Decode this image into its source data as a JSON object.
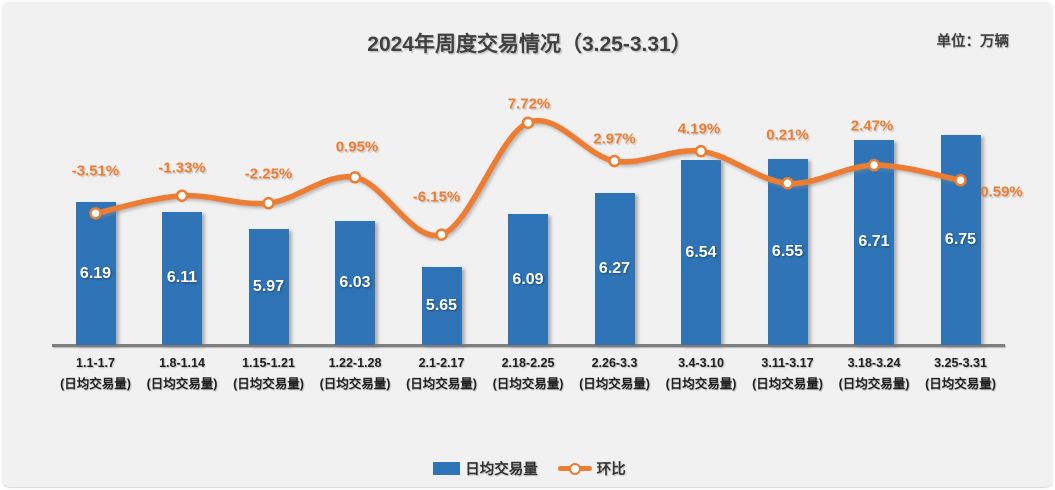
{
  "header": {
    "title": "2024年周度交易情况（3.25-3.31）",
    "unit_label": "单位：万辆"
  },
  "chart_data": {
    "type": "bar",
    "subtype": "bar+line combo",
    "title": "2024年周度交易情况（3.25-3.31）",
    "unit": "万辆",
    "categories": [
      "1.1-1.7",
      "1.8-1.14",
      "1.15-1.21",
      "1.22-1.28",
      "2.1-2.17",
      "2.18-2.25",
      "2.26-3.3",
      "3.4-3.10",
      "3.11-3.17",
      "3.18-3.24",
      "3.25-3.31"
    ],
    "category_sublabel": "(日均交易量)",
    "series": [
      {
        "name": "日均交易量",
        "type": "bar",
        "color": "#2E74B6",
        "values": [
          6.19,
          6.11,
          5.97,
          6.03,
          5.65,
          6.09,
          6.27,
          6.54,
          6.55,
          6.71,
          6.75
        ],
        "labels": [
          "6.19",
          "6.11",
          "5.97",
          "6.03",
          "5.65",
          "6.09",
          "6.27",
          "6.54",
          "6.55",
          "6.71",
          "6.75"
        ]
      },
      {
        "name": "环比",
        "type": "line",
        "color": "#ED7D31",
        "values_pct": [
          -3.51,
          -1.33,
          -2.25,
          0.95,
          -6.15,
          7.72,
          2.97,
          4.19,
          0.21,
          2.47,
          0.59
        ],
        "labels": [
          "-3.51%",
          "-1.33%",
          "-2.25%",
          "0.95%",
          "-6.15%",
          "7.72%",
          "2.97%",
          "4.19%",
          "0.21%",
          "2.47%",
          "0.59%"
        ]
      }
    ],
    "ylim": [
      5,
      7.5
    ],
    "y2lim_pct": [
      -20,
      10
    ],
    "xlabel": "",
    "ylabel": "",
    "grid": false,
    "legend_position": "bottom",
    "axes_visible": {
      "x": true,
      "y": false,
      "y2": false
    }
  },
  "colors": {
    "background": "#f1f1f1",
    "bar": "#2E74B6",
    "line": "#ED7D31",
    "title_text": "#404040",
    "tick_text": "#1f1f1f",
    "axis_line": "#7f7f7f",
    "bar_value_text": "#ffffff"
  }
}
